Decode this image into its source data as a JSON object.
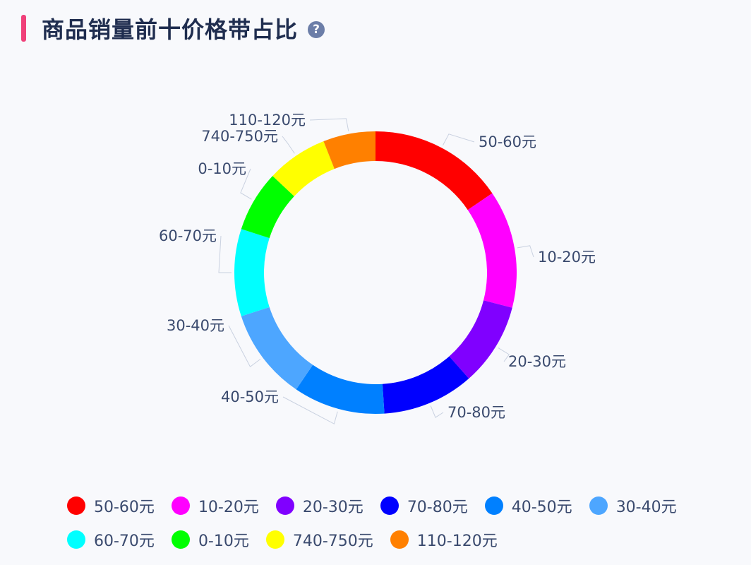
{
  "header": {
    "title": "商品销量前十价格带占比",
    "help_icon": "question-circle-icon",
    "accent_color": "#f0417a"
  },
  "chart_data": {
    "type": "pie",
    "donut": true,
    "title": "商品销量前十价格带占比",
    "start_angle_deg": 0,
    "direction": "clockwise",
    "legend_position": "bottom",
    "slices": [
      {
        "label": "50-60元",
        "value": 15.5,
        "color": "#ff0000"
      },
      {
        "label": "10-20元",
        "value": 13.5,
        "color": "#ff00ff"
      },
      {
        "label": "20-30元",
        "value": 9.5,
        "color": "#8000ff"
      },
      {
        "label": "70-80元",
        "value": 10.5,
        "color": "#0000ff"
      },
      {
        "label": "40-50元",
        "value": 10.5,
        "color": "#0080ff"
      },
      {
        "label": "30-40元",
        "value": 10.5,
        "color": "#4da6ff"
      },
      {
        "label": "60-70元",
        "value": 10.0,
        "color": "#00ffff"
      },
      {
        "label": "0-10元",
        "value": 7.0,
        "color": "#00ff00"
      },
      {
        "label": "740-750元",
        "value": 7.0,
        "color": "#ffff00"
      },
      {
        "label": "110-120元",
        "value": 6.0,
        "color": "#ff8000"
      }
    ]
  },
  "legend": {
    "rows": [
      [
        0,
        1,
        2,
        3,
        4,
        5
      ],
      [
        6,
        7,
        8,
        9
      ]
    ]
  }
}
